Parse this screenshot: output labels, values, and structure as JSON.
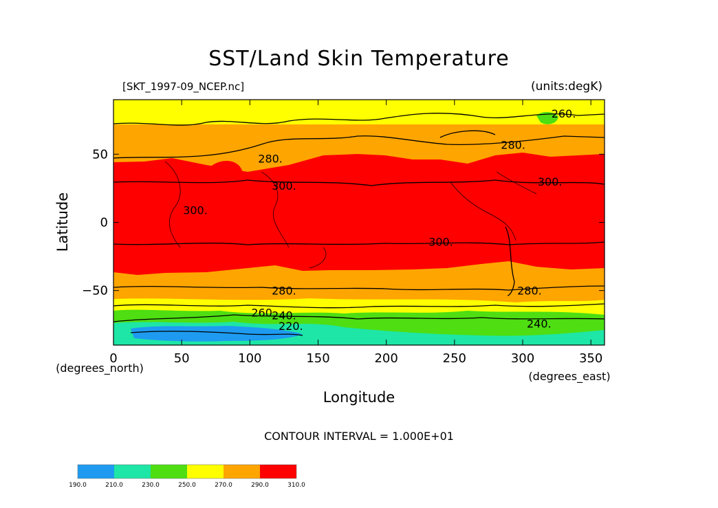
{
  "title": "SST/Land Skin Temperature",
  "file_label": "[SKT_1997-09_NCEP.nc]",
  "units_label": "(units:degK)",
  "y_axis": {
    "label": "Latitude",
    "ticks": [
      "50",
      "0",
      "−50"
    ],
    "unit_note": "(degrees_north)"
  },
  "x_axis": {
    "label": "Longitude",
    "ticks": [
      "0",
      "50",
      "100",
      "150",
      "200",
      "250",
      "300",
      "350"
    ],
    "unit_note": "(degrees_east)"
  },
  "contour_interval": "CONTOUR INTERVAL = 1.000E+01",
  "colorbar": {
    "labels": [
      "190.0",
      "210.0",
      "230.0",
      "250.0",
      "270.0",
      "290.0",
      "310.0"
    ],
    "colors": [
      "#1e9bf0",
      "#1ee6a6",
      "#4ede12",
      "#ffff00",
      "#ffa500",
      "#ff0000"
    ]
  },
  "contour_labels": [
    {
      "text": "260.",
      "lon": 330,
      "lat": 80
    },
    {
      "text": "280.",
      "lon": 293,
      "lat": 57
    },
    {
      "text": "280.",
      "lon": 115,
      "lat": 47
    },
    {
      "text": "300.",
      "lon": 320,
      "lat": 30
    },
    {
      "text": "300.",
      "lon": 125,
      "lat": 27
    },
    {
      "text": "300.",
      "lon": 60,
      "lat": 9
    },
    {
      "text": "300.",
      "lon": 240,
      "lat": -14
    },
    {
      "text": "280.",
      "lon": 125,
      "lat": -50
    },
    {
      "text": "280.",
      "lon": 305,
      "lat": -50
    },
    {
      "text": "260.",
      "lon": 110,
      "lat": -66
    },
    {
      "text": "240.",
      "lon": 125,
      "lat": -68
    },
    {
      "text": "240.",
      "lon": 312,
      "lat": -74
    },
    {
      "text": "220.",
      "lon": 130,
      "lat": -76
    }
  ]
}
